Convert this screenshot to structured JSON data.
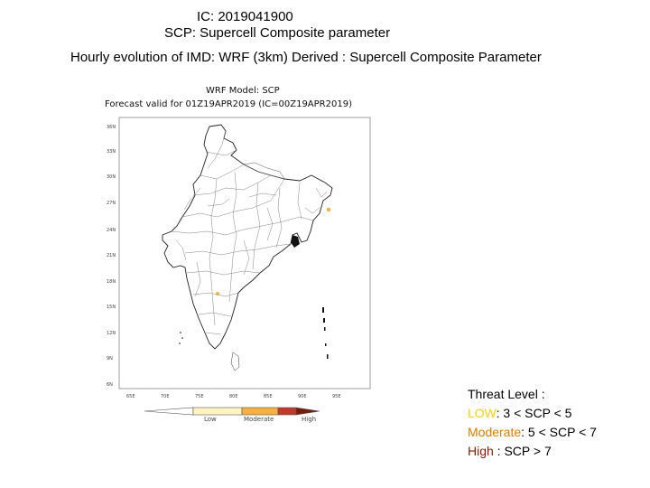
{
  "header": {
    "ic": "IC: 2019041900",
    "scp": "SCP: Supercell Composite parameter",
    "hourly": "Hourly evolution of IMD: WRF (3km) Derived : Supercell Composite Parameter"
  },
  "map": {
    "model_title": "WRF Model: SCP",
    "valid_text": "Forecast valid for 01Z19APR2019 (IC=00Z19APR2019)",
    "lat_ticks": [
      "36N",
      "33N",
      "30N",
      "27N",
      "24N",
      "21N",
      "18N",
      "15N",
      "12N",
      "9N",
      "6N"
    ],
    "lon_ticks": [
      "65E",
      "70E",
      "75E",
      "80E",
      "85E",
      "90E",
      "95E"
    ],
    "colorbar": {
      "labels": [
        "Low",
        "Moderate",
        "High"
      ],
      "colors": {
        "low": "#fff4c2",
        "moderate": "#f5b041",
        "high": "#c0392b",
        "outline": "#555555"
      }
    },
    "hotspot_color": "#f5b041"
  },
  "threat": {
    "title": "Threat Level :",
    "low_label": "LOW",
    "low_value": ": 3 < SCP <  5",
    "moderate_label": "Moderate",
    "moderate_value": ":  5 < SCP < 7",
    "high_label": "High",
    "high_value": " : SCP > 7",
    "colors": {
      "low": "#ffd100",
      "moderate": "#e07b00",
      "high": "#8b1a00"
    }
  }
}
